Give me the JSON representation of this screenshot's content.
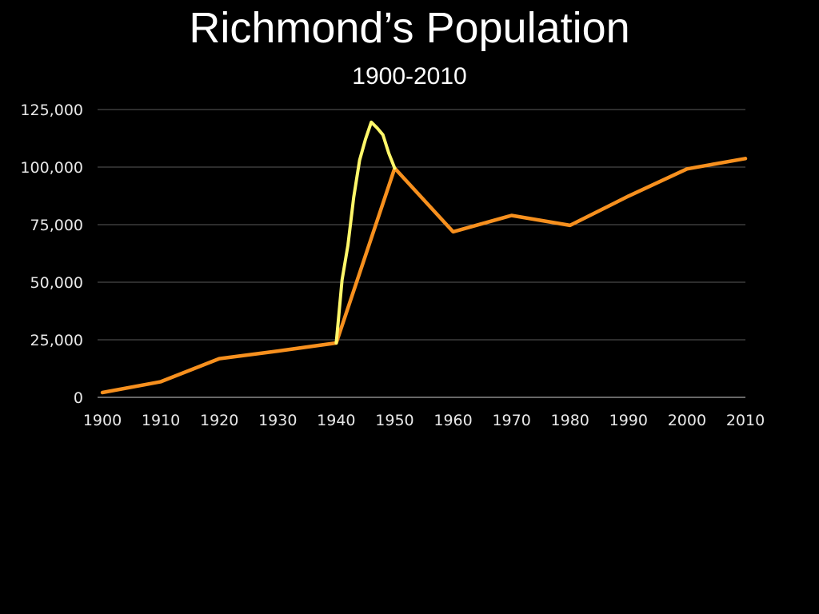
{
  "chart_data": {
    "type": "line",
    "title": "Richmond’s Population",
    "subtitle": "1900-2010",
    "x": [
      1900,
      1910,
      1920,
      1930,
      1940,
      1950,
      1960,
      1970,
      1980,
      1990,
      2000,
      2010
    ],
    "x_ticks": [
      "1900",
      "1910",
      "1920",
      "1930",
      "1940",
      "1950",
      "1960",
      "1970",
      "1980",
      "1990",
      "2000",
      "2010"
    ],
    "y_ticks": [
      "0",
      "25,000",
      "50,000",
      "75,000",
      "100,000",
      "125,000"
    ],
    "y_tick_values": [
      0,
      25000,
      50000,
      75000,
      100000,
      125000
    ],
    "ylim": [
      0,
      125000
    ],
    "xlim": [
      1900,
      2010
    ],
    "grid": true,
    "series": [
      {
        "color": "#f7901e",
        "x": [
          1900,
          1910,
          1920,
          1930,
          1940,
          1950,
          1960,
          1970,
          1980,
          1990,
          2000,
          2010
        ],
        "values": [
          2100,
          6800,
          16800,
          20100,
          23600,
          99500,
          71900,
          79000,
          74700,
          87400,
          99200,
          103700
        ]
      },
      {
        "color": "#fff76a",
        "x": [
          1940,
          1941,
          1942,
          1943,
          1944,
          1945,
          1946,
          1947,
          1948,
          1949,
          1950
        ],
        "values": [
          23600,
          51000,
          66000,
          87000,
          103000,
          112000,
          119500,
          117000,
          114000,
          106000,
          99500
        ]
      }
    ]
  }
}
